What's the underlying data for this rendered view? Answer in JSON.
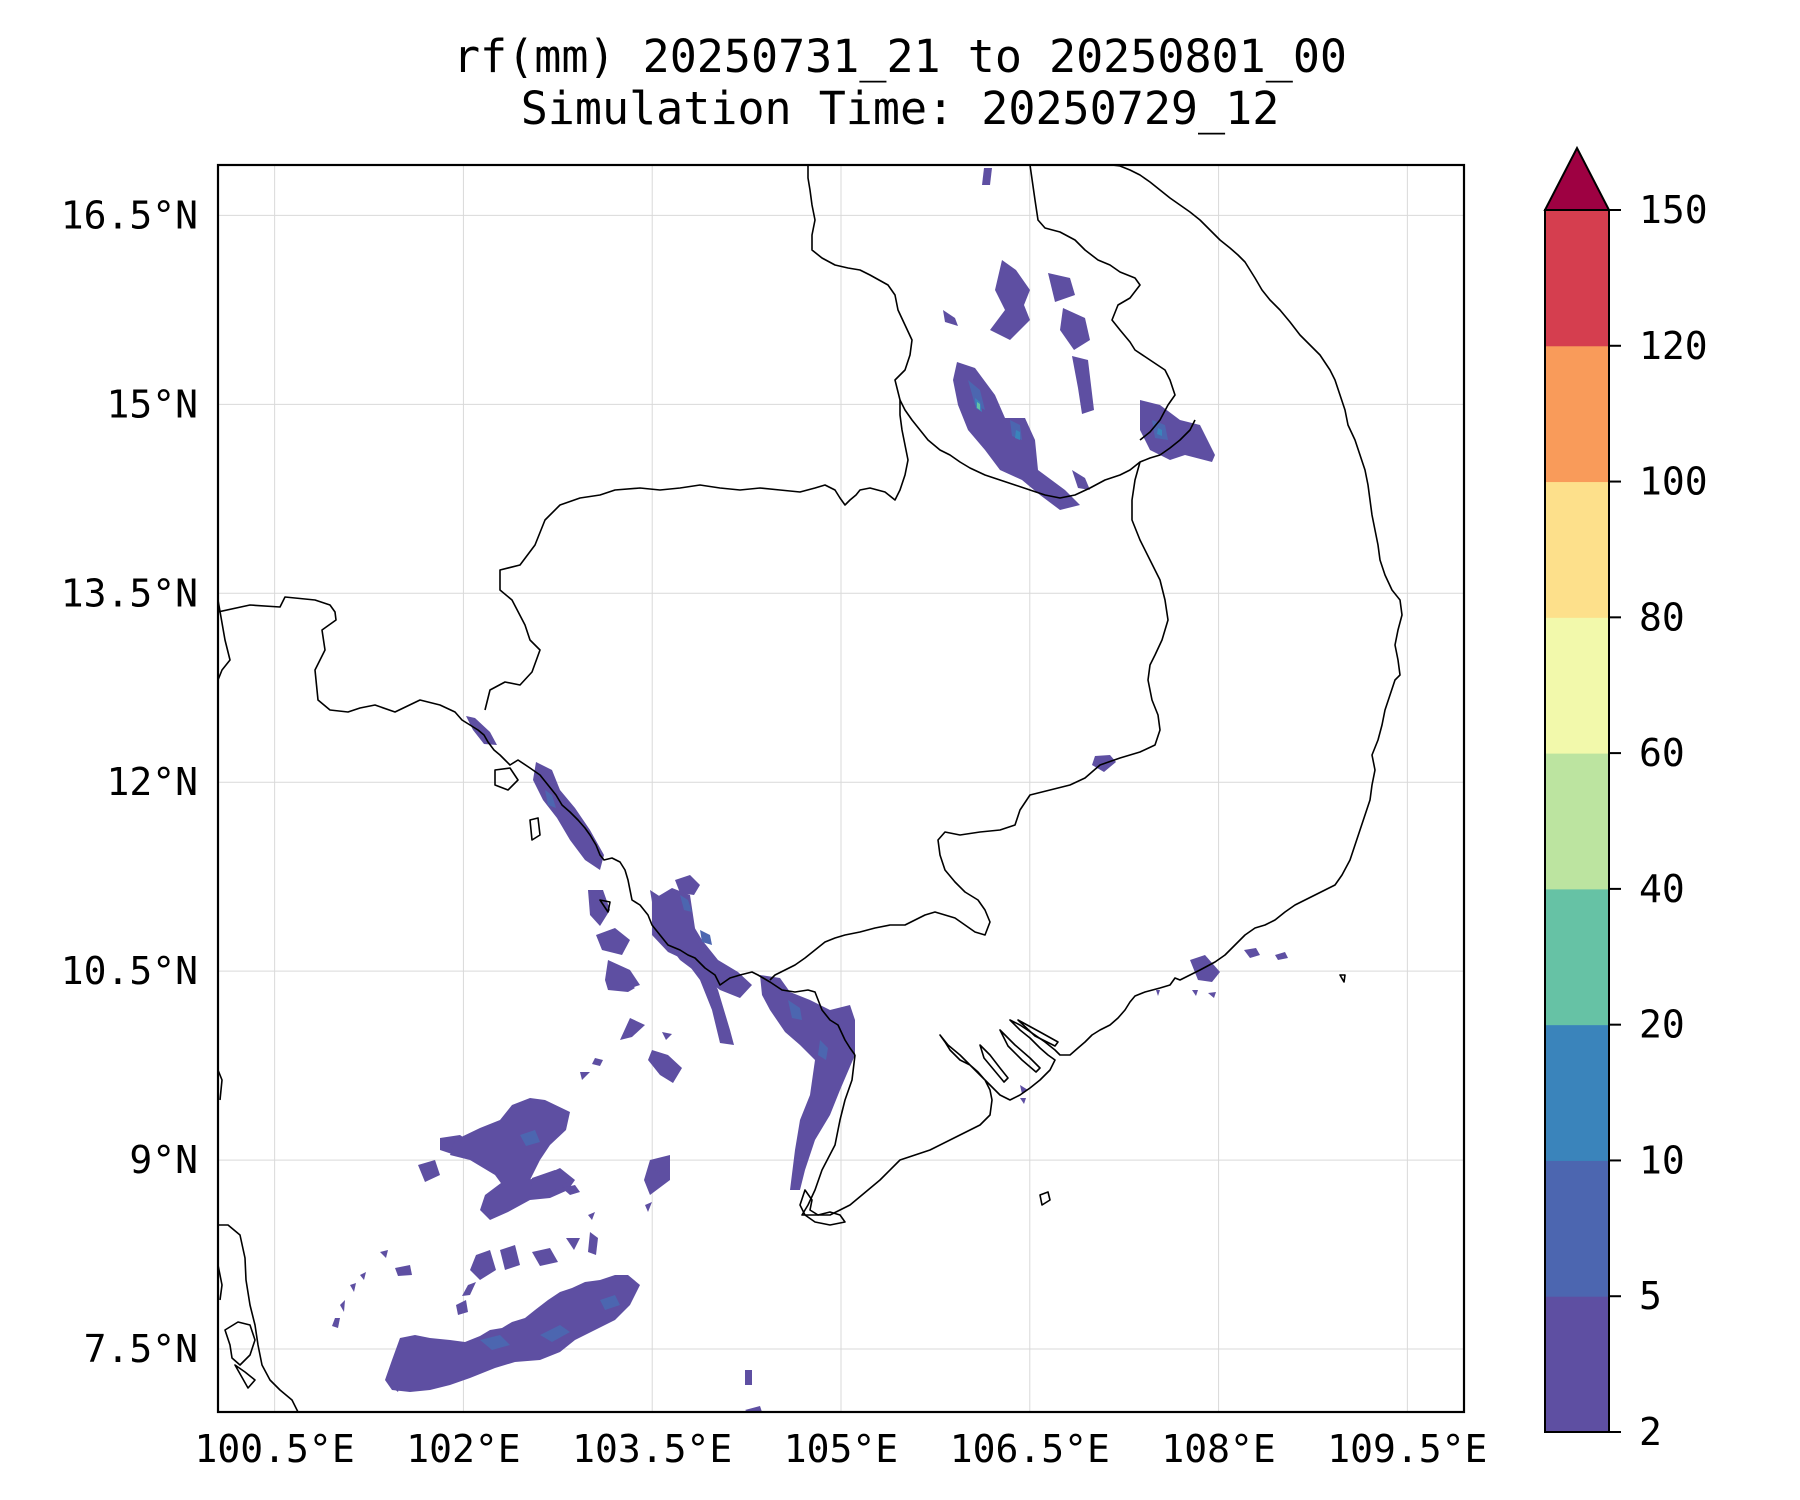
{
  "title": {
    "line1": "rf(mm) 20250731_21 to 20250801_00",
    "line2": "Simulation Time: 20250729_12"
  },
  "map": {
    "lon_range": [
      100.05,
      109.95
    ],
    "lat_range": [
      7.0,
      16.9
    ],
    "lon_ticks": [
      "100.5°E",
      "102°E",
      "103.5°E",
      "105°E",
      "106.5°E",
      "108°E",
      "109.5°E"
    ],
    "lat_ticks": [
      "16.5°N",
      "15°N",
      "13.5°N",
      "12°N",
      "10.5°N",
      "9°N",
      "7.5°N"
    ],
    "gridlines": true,
    "coastline_color": "#000000"
  },
  "colorbar": {
    "tick_labels": [
      "2",
      "5",
      "10",
      "20",
      "40",
      "60",
      "80",
      "100",
      "120",
      "150"
    ],
    "colors": [
      "#5e4fa2",
      "#4c66b0",
      "#3a84bb",
      "#66c2a5",
      "#bce4a0",
      "#f2f9ab",
      "#fde08b",
      "#f99b5a",
      "#d53e4f"
    ],
    "extend_color": "#9e0142",
    "extend": "max",
    "units": "mm"
  }
}
